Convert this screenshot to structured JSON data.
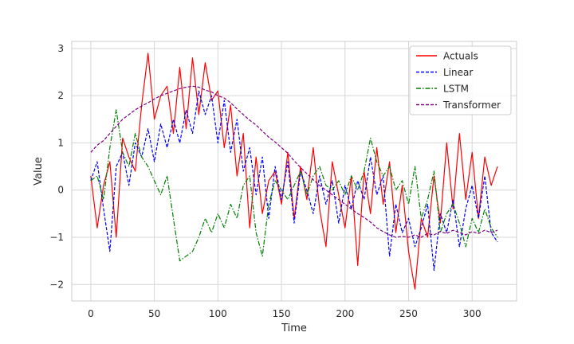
{
  "chart_data": {
    "type": "line",
    "title": "",
    "xlabel": "Time",
    "ylabel": "Value",
    "xlim": [
      -15,
      335
    ],
    "ylim": [
      -2.35,
      3.15
    ],
    "xticks": [
      0,
      50,
      100,
      150,
      200,
      250,
      300
    ],
    "yticks": [
      -2,
      -1,
      0,
      1,
      2,
      3
    ],
    "grid": true,
    "legend": "upper right",
    "series": [
      {
        "name": "Actuals",
        "color": "#ff0000",
        "dash": "solid",
        "x": [
          0,
          5,
          10,
          15,
          20,
          25,
          30,
          35,
          40,
          45,
          50,
          55,
          60,
          65,
          70,
          75,
          80,
          85,
          90,
          95,
          100,
          105,
          110,
          115,
          120,
          125,
          130,
          135,
          140,
          145,
          150,
          155,
          160,
          165,
          170,
          175,
          180,
          185,
          190,
          195,
          200,
          205,
          210,
          215,
          220,
          225,
          230,
          235,
          240,
          245,
          250,
          255,
          260,
          265,
          270,
          275,
          280,
          285,
          290,
          295,
          300,
          305,
          310,
          315,
          320
        ],
        "y": [
          0.3,
          -0.8,
          0.1,
          0.6,
          -1.0,
          1.1,
          0.7,
          0.4,
          1.8,
          2.9,
          1.5,
          2.0,
          2.2,
          1.2,
          2.6,
          1.3,
          2.8,
          1.6,
          2.7,
          1.9,
          2.1,
          0.9,
          1.8,
          0.3,
          1.2,
          -0.8,
          0.7,
          -0.5,
          0.2,
          0.4,
          -0.3,
          0.8,
          -0.6,
          0.5,
          -0.2,
          0.9,
          -0.4,
          -1.2,
          0.6,
          -0.1,
          -0.8,
          0.3,
          -1.6,
          0.4,
          -0.5,
          0.9,
          -0.3,
          0.6,
          -0.9,
          0.1,
          -1.3,
          -2.1,
          -0.6,
          -1.0,
          0.3,
          -0.7,
          1.0,
          -0.4,
          1.2,
          -0.2,
          0.8,
          -0.6,
          0.7,
          0.1,
          0.5
        ]
      },
      {
        "name": "Linear",
        "color": "#0000ff",
        "dash": "dashed",
        "x": [
          0,
          5,
          10,
          15,
          20,
          25,
          30,
          35,
          40,
          45,
          50,
          55,
          60,
          65,
          70,
          75,
          80,
          85,
          90,
          95,
          100,
          105,
          110,
          115,
          120,
          125,
          130,
          135,
          140,
          145,
          150,
          155,
          160,
          165,
          170,
          175,
          180,
          185,
          190,
          195,
          200,
          205,
          210,
          215,
          220,
          225,
          230,
          235,
          240,
          245,
          250,
          255,
          260,
          265,
          270,
          275,
          280,
          285,
          290,
          295,
          300,
          305,
          310,
          315,
          320
        ],
        "y": [
          0.2,
          0.6,
          -0.4,
          -1.3,
          0.5,
          0.8,
          0.1,
          1.0,
          0.7,
          1.3,
          0.6,
          1.4,
          0.9,
          1.5,
          1.0,
          1.7,
          1.2,
          2.1,
          1.6,
          2.0,
          1.0,
          1.9,
          0.8,
          1.5,
          0.4,
          0.9,
          -0.1,
          0.7,
          -0.6,
          0.5,
          -0.2,
          0.6,
          -0.7,
          0.4,
          0.0,
          -0.5,
          0.3,
          -0.3,
          0.2,
          -0.7,
          0.1,
          -0.4,
          0.2,
          -0.2,
          0.7,
          -0.1,
          0.3,
          -1.4,
          -0.3,
          -0.9,
          -0.6,
          -1.2,
          -0.8,
          -0.3,
          -1.7,
          -0.5,
          -0.9,
          -0.2,
          -1.2,
          -0.4,
          0.1,
          -0.6,
          0.3,
          -0.9,
          -1.1
        ]
      },
      {
        "name": "LSTM",
        "color": "#008000",
        "dash": "dashdot",
        "x": [
          0,
          5,
          10,
          15,
          20,
          25,
          30,
          35,
          40,
          45,
          50,
          55,
          60,
          65,
          70,
          75,
          80,
          85,
          90,
          95,
          100,
          105,
          110,
          115,
          120,
          125,
          130,
          135,
          140,
          145,
          150,
          155,
          160,
          165,
          170,
          175,
          180,
          185,
          190,
          195,
          200,
          205,
          210,
          215,
          220,
          225,
          230,
          235,
          240,
          245,
          250,
          255,
          260,
          265,
          270,
          275,
          280,
          285,
          290,
          295,
          300,
          305,
          310,
          315,
          320
        ],
        "y": [
          0.2,
          0.3,
          -0.2,
          0.9,
          1.7,
          0.8,
          0.5,
          1.2,
          0.7,
          0.5,
          0.2,
          -0.1,
          0.3,
          -0.6,
          -1.5,
          -1.4,
          -1.3,
          -1.0,
          -0.6,
          -0.9,
          -0.5,
          -0.8,
          -0.3,
          -0.6,
          0.1,
          0.3,
          -0.9,
          -1.4,
          -0.3,
          0.2,
          0.0,
          -0.2,
          0.1,
          0.4,
          -0.1,
          0.3,
          0.5,
          0.1,
          0.0,
          0.2,
          -0.1,
          0.3,
          0.0,
          0.4,
          1.1,
          0.6,
          0.3,
          0.5,
          0.0,
          0.2,
          -0.3,
          0.5,
          -0.6,
          -0.2,
          0.4,
          -0.9,
          -0.5,
          -0.3,
          -0.7,
          -1.2,
          -0.6,
          -0.9,
          -0.4,
          -0.8,
          -1.0
        ]
      },
      {
        "name": "Transformer",
        "color": "#800080",
        "dash": "dashed",
        "x": [
          0,
          5,
          10,
          15,
          20,
          25,
          30,
          35,
          40,
          45,
          50,
          55,
          60,
          65,
          70,
          75,
          80,
          85,
          90,
          95,
          100,
          105,
          110,
          115,
          120,
          125,
          130,
          135,
          140,
          145,
          150,
          155,
          160,
          165,
          170,
          175,
          180,
          185,
          190,
          195,
          200,
          205,
          210,
          215,
          220,
          225,
          230,
          235,
          240,
          245,
          250,
          255,
          260,
          265,
          270,
          275,
          280,
          285,
          290,
          295,
          300,
          305,
          310,
          315,
          320
        ],
        "y": [
          0.8,
          0.95,
          1.05,
          1.2,
          1.35,
          1.5,
          1.6,
          1.7,
          1.78,
          1.85,
          1.93,
          2.0,
          2.05,
          2.1,
          2.15,
          2.18,
          2.2,
          2.18,
          2.12,
          2.08,
          2.0,
          1.95,
          1.85,
          1.72,
          1.6,
          1.48,
          1.38,
          1.25,
          1.12,
          1.02,
          0.9,
          0.78,
          0.62,
          0.48,
          0.35,
          0.22,
          0.1,
          0.0,
          -0.1,
          -0.2,
          -0.3,
          -0.4,
          -0.5,
          -0.58,
          -0.68,
          -0.8,
          -0.88,
          -0.95,
          -1.0,
          -0.98,
          -1.0,
          -0.95,
          -1.0,
          -0.92,
          -0.95,
          -0.88,
          -0.92,
          -0.85,
          -0.9,
          -0.95,
          -0.88,
          -0.92,
          -0.85,
          -0.9,
          -0.85
        ]
      }
    ]
  }
}
